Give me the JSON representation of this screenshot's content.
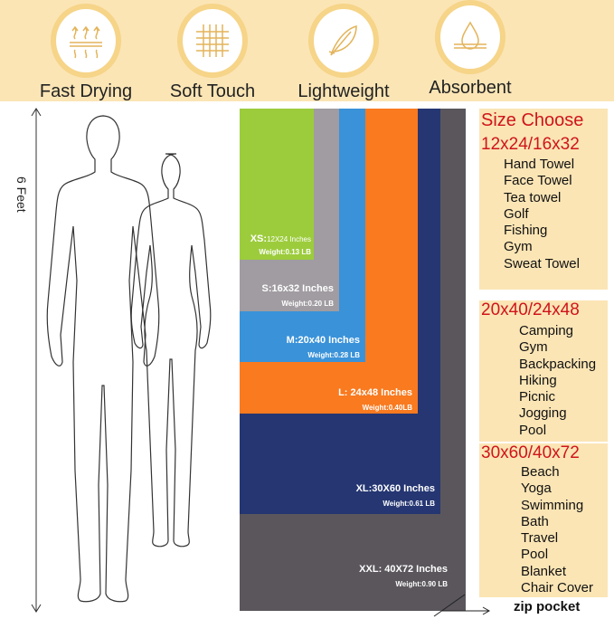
{
  "features": [
    {
      "label": "Fast Drying",
      "icon": "heat-waves-icon"
    },
    {
      "label": "Soft Touch",
      "icon": "mesh-fabric-icon"
    },
    {
      "label": "Lightweight",
      "icon": "feather-icon"
    },
    {
      "label": "Absorbent",
      "icon": "water-drop-icon"
    }
  ],
  "height_label": "6 Feet",
  "towels": [
    {
      "size": "XXL: 40X72 Inches",
      "weight": "Weight:0.90 LB",
      "color": "#5a565c"
    },
    {
      "size": "XL:30X60 Inches",
      "weight": "Weight:0.61 LB",
      "color": "#253672"
    },
    {
      "size": "L: 24x48 Inches",
      "weight": "Weight:0.40LB",
      "color": "#f97a1f"
    },
    {
      "size": "M:20x40 Inches",
      "weight": "Weight:0.28 LB",
      "color": "#3a92d9"
    },
    {
      "size": "S:16x32 Inches",
      "weight": "Weight:0.20 LB",
      "color": "#a09ca1"
    },
    {
      "size_prefix": "XS:",
      "size": "12X24 Inches",
      "weight": "Weight:0.13 LB",
      "color": "#9ccc3c"
    }
  ],
  "zip_label": "zip pocket",
  "size_choose": "Size Choose",
  "groups": [
    {
      "heading": "12x24/16x32",
      "items": [
        "Hand Towel",
        "Face Towel",
        "Tea towel",
        "Golf",
        "Fishing",
        "Gym",
        "Sweat Towel"
      ]
    },
    {
      "heading": "20x40/24x48",
      "items": [
        "Camping",
        "Gym",
        "Backpacking",
        "Hiking",
        "Picnic",
        "Jogging",
        "Pool"
      ]
    },
    {
      "heading": "30x60/40x72",
      "items": [
        "Beach",
        "Yoga",
        "Swimming",
        "Bath",
        "Travel",
        "Pool",
        "Blanket",
        "Chair Cover"
      ]
    }
  ]
}
